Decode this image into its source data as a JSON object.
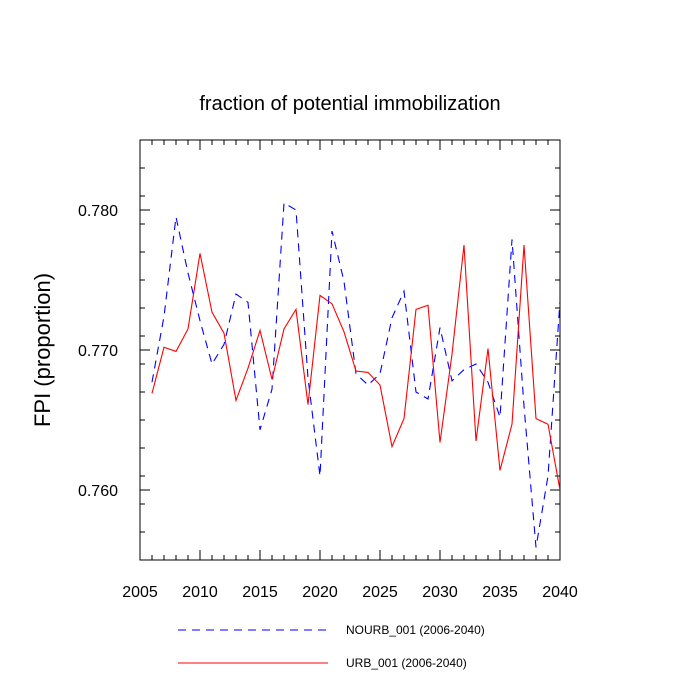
{
  "chart_data": {
    "type": "line",
    "title": "fraction of potential immobilization",
    "xlabel": "",
    "ylabel": "FPI  (proportion)",
    "xlim": [
      2005,
      2040
    ],
    "ylim": [
      0.755,
      0.785
    ],
    "x_ticks": [
      2005,
      2010,
      2015,
      2020,
      2025,
      2030,
      2035,
      2040
    ],
    "x_tick_labels": [
      "2005",
      "2010",
      "2015",
      "2020",
      "2025",
      "2030",
      "2035",
      "2040"
    ],
    "y_ticks": [
      0.76,
      0.77,
      0.78
    ],
    "y_tick_labels": [
      "0.760",
      "0.770",
      "0.780"
    ],
    "grid": false,
    "legend_position": "bottom",
    "x": [
      2006,
      2007,
      2008,
      2009,
      2010,
      2011,
      2012,
      2013,
      2014,
      2015,
      2016,
      2017,
      2018,
      2019,
      2020,
      2021,
      2022,
      2023,
      2024,
      2025,
      2026,
      2027,
      2028,
      2029,
      2030,
      2031,
      2032,
      2033,
      2034,
      2035,
      2036,
      2037,
      2038,
      2039,
      2040
    ],
    "series": [
      {
        "name": "NOURB_001 (2006-2040)",
        "color": "#0000ff",
        "dash": "dashed",
        "values": [
          0.7677,
          0.7724,
          0.7795,
          0.7755,
          0.7721,
          0.769,
          0.7704,
          0.774,
          0.7734,
          0.7643,
          0.7672,
          0.7805,
          0.78,
          0.768,
          0.761,
          0.7785,
          0.7749,
          0.7683,
          0.7675,
          0.7683,
          0.7723,
          0.7742,
          0.767,
          0.7665,
          0.7716,
          0.7678,
          0.7686,
          0.769,
          0.7677,
          0.7652,
          0.7779,
          0.766,
          0.7559,
          0.761,
          0.7735
        ]
      },
      {
        "name": "URB_001 (2006-2040)",
        "color": "#ff0000",
        "dash": "solid",
        "values": [
          0.7669,
          0.7702,
          0.7699,
          0.7715,
          0.7769,
          0.7727,
          0.7712,
          0.7664,
          0.7687,
          0.7714,
          0.7679,
          0.7715,
          0.7729,
          0.7661,
          0.7739,
          0.7733,
          0.7713,
          0.7685,
          0.7684,
          0.7675,
          0.7631,
          0.7651,
          0.7729,
          0.7732,
          0.7634,
          0.7697,
          0.7775,
          0.7635,
          0.7701,
          0.7614,
          0.7647,
          0.7775,
          0.7651,
          0.7647,
          0.76
        ]
      }
    ]
  }
}
